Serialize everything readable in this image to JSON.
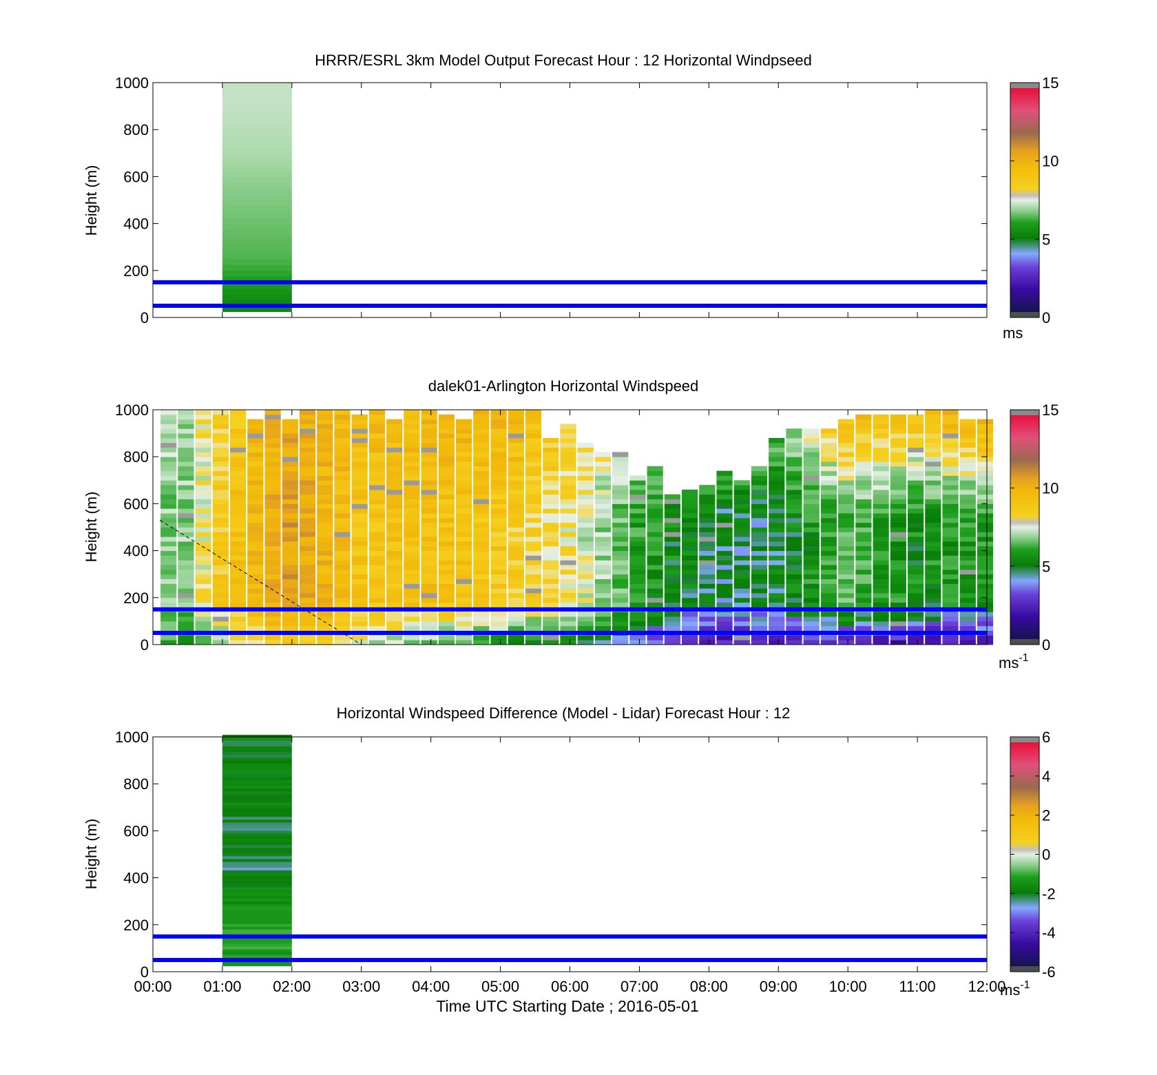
{
  "figure": {
    "xlabel": "Time UTC  Starting Date ; 2016-05-01",
    "x_ticks": [
      "00:00",
      "01:00",
      "02:00",
      "03:00",
      "04:00",
      "05:00",
      "06:00",
      "07:00",
      "08:00",
      "09:00",
      "10:00",
      "11:00",
      "12:00"
    ]
  },
  "chart_data": [
    {
      "type": "heatmap",
      "title": "HRRR/ESRL 3km Model Output   Forecast Hour : 12 Horizontal Windpseed",
      "ylabel": "Height (m)",
      "xlim_hours": [
        0,
        12
      ],
      "ylim": [
        0,
        1000
      ],
      "y_ticks": [
        "0",
        "200",
        "400",
        "600",
        "800",
        "1000"
      ],
      "colorbar": {
        "min": 0,
        "max": 15,
        "ticks": [
          "0",
          "5",
          "10",
          "15"
        ],
        "unit": "ms"
      },
      "reference_lines_m": [
        50,
        150
      ],
      "reference_line_color": "#0000ff",
      "data": {
        "time_hours": [
          1,
          2
        ],
        "heights_m": [
          25,
          1000
        ],
        "windspeed_by_height": [
          {
            "height_m": 50,
            "value": 4.8
          },
          {
            "height_m": 150,
            "value": 5.4
          },
          {
            "height_m": 250,
            "value": 6.0
          },
          {
            "height_m": 400,
            "value": 6.3
          },
          {
            "height_m": 550,
            "value": 6.6
          },
          {
            "height_m": 700,
            "value": 6.9
          },
          {
            "height_m": 900,
            "value": 7.1
          }
        ]
      }
    },
    {
      "type": "heatmap",
      "title": "dalek01-Arlington  Horizontal Windspeed",
      "ylabel": "Height (m)",
      "xlim_hours": [
        0,
        12
      ],
      "ylim": [
        0,
        1000
      ],
      "y_ticks": [
        "0",
        "200",
        "400",
        "600",
        "800",
        "1000"
      ],
      "colorbar": {
        "min": 0,
        "max": 15,
        "ticks": [
          "0",
          "5",
          "10",
          "15"
        ],
        "unit": "ms",
        "unit_exp": "-1"
      },
      "reference_lines_m": [
        50,
        150
      ],
      "reference_line_color": "#0000ff",
      "dashed_line": {
        "from": [
          0.1,
          530
        ],
        "to": [
          3.0,
          0
        ]
      },
      "data": {
        "time_hours": [
          0.1,
          11.9
        ],
        "description_values": [
          {
            "t": 0.5,
            "low": 5.5,
            "mid": 6.5,
            "high": 6.8,
            "top_m": 1000
          },
          {
            "t": 1.0,
            "low": 6.5,
            "mid": 8.8,
            "high": 8.5,
            "top_m": 1000
          },
          {
            "t": 2.0,
            "low": 9.0,
            "mid": 10.8,
            "high": 10.5,
            "top_m": 1000
          },
          {
            "t": 3.0,
            "low": 7.0,
            "mid": 9.0,
            "high": 9.5,
            "top_m": 1000
          },
          {
            "t": 4.0,
            "low": 6.0,
            "mid": 9.3,
            "high": 9.8,
            "top_m": 1000
          },
          {
            "t": 5.0,
            "low": 5.0,
            "mid": 8.8,
            "high": 10.0,
            "top_m": 1000
          },
          {
            "t": 6.0,
            "low": 4.5,
            "mid": 7.8,
            "high": 8.5,
            "top_m": 900
          },
          {
            "t": 7.0,
            "low": 3.0,
            "mid": 5.5,
            "high": 8.0,
            "top_m": 700
          },
          {
            "t": 8.0,
            "low": 2.0,
            "mid": 4.2,
            "high": 8.5,
            "top_m": 650
          },
          {
            "t": 9.0,
            "low": 1.8,
            "mid": 4.5,
            "high": 6.5,
            "top_m": 850
          },
          {
            "t": 10.0,
            "low": 2.2,
            "mid": 6.0,
            "high": 9.8,
            "top_m": 1000
          },
          {
            "t": 11.0,
            "low": 1.5,
            "mid": 5.0,
            "high": 9.5,
            "top_m": 1000
          },
          {
            "t": 11.9,
            "low": 1.5,
            "mid": 5.5,
            "high": 10.5,
            "top_m": 1000
          }
        ]
      }
    },
    {
      "type": "heatmap",
      "title": "Horizontal Windspeed Difference (Model - Lidar) Forecast Hour : 12",
      "ylabel": "Height (m)",
      "xlim_hours": [
        0,
        12
      ],
      "ylim": [
        0,
        1000
      ],
      "y_ticks": [
        "0",
        "200",
        "400",
        "600",
        "800",
        "1000"
      ],
      "colorbar": {
        "min": -6,
        "max": 6,
        "ticks": [
          "-6",
          "-4",
          "-2",
          "0",
          "2",
          "4",
          "6"
        ],
        "unit": "ms",
        "unit_exp": "-1"
      },
      "reference_lines_m": [
        50,
        150
      ],
      "reference_line_color": "#0000ff",
      "data": {
        "time_hours": [
          1,
          2
        ],
        "heights_m": [
          25,
          1000
        ],
        "difference_by_height": [
          {
            "height_m": 50,
            "value": -1.8
          },
          {
            "height_m": 150,
            "value": -1.4
          },
          {
            "height_m": 300,
            "value": -2.0
          },
          {
            "height_m": 450,
            "value": -2.6
          },
          {
            "height_m": 600,
            "value": -2.4
          },
          {
            "height_m": 800,
            "value": -2.2
          },
          {
            "height_m": 950,
            "value": -2.3
          }
        ]
      }
    }
  ],
  "colormap": [
    "#4d4d4d",
    "#141450",
    "#3a0aa0",
    "#6a40d8",
    "#84a8ff",
    "#087c08",
    "#1ea01e",
    "#8acc8a",
    "#e6efe6",
    "#f5d020",
    "#f2b90a",
    "#e4a020",
    "#b07a45",
    "#9a6a50",
    "#e0507a",
    "#e8103a",
    "#8a8a8a"
  ]
}
